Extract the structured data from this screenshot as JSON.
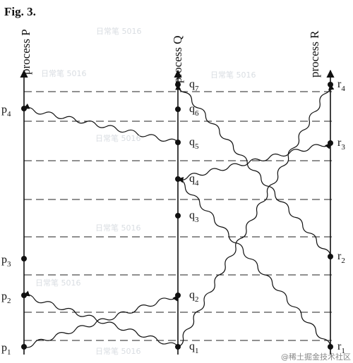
{
  "figure": {
    "title": "Fig. 3.",
    "processes": [
      {
        "id": "P",
        "label": "process P"
      },
      {
        "id": "Q",
        "label": "process Q"
      },
      {
        "id": "R",
        "label": "process R"
      }
    ],
    "events": {
      "P": [
        {
          "name": "p",
          "index": "1"
        },
        {
          "name": "p",
          "index": "2"
        },
        {
          "name": "p",
          "index": "3"
        },
        {
          "name": "p",
          "index": "4"
        }
      ],
      "Q": [
        {
          "name": "q",
          "index": "1"
        },
        {
          "name": "q",
          "index": "2"
        },
        {
          "name": "q",
          "index": "3"
        },
        {
          "name": "q",
          "index": "4"
        },
        {
          "name": "q",
          "index": "5"
        },
        {
          "name": "q",
          "index": "6"
        },
        {
          "name": "q",
          "index": "7"
        }
      ],
      "R": [
        {
          "name": "r",
          "index": "1"
        },
        {
          "name": "r",
          "index": "2"
        },
        {
          "name": "r",
          "index": "3"
        },
        {
          "name": "r",
          "index": "4"
        }
      ]
    },
    "messages": [
      {
        "from": "p1",
        "to": "q2"
      },
      {
        "from": "q1",
        "to": "p2"
      },
      {
        "from": "q1",
        "to": "r4"
      },
      {
        "from": "r1",
        "to": "q4"
      },
      {
        "from": "q4",
        "to": "r3"
      },
      {
        "from": "q5",
        "to": "p4"
      },
      {
        "from": "r2",
        "to": "q7"
      }
    ],
    "watermark": "日常笔 5016",
    "credit": "@稀土掘金技术社区"
  }
}
